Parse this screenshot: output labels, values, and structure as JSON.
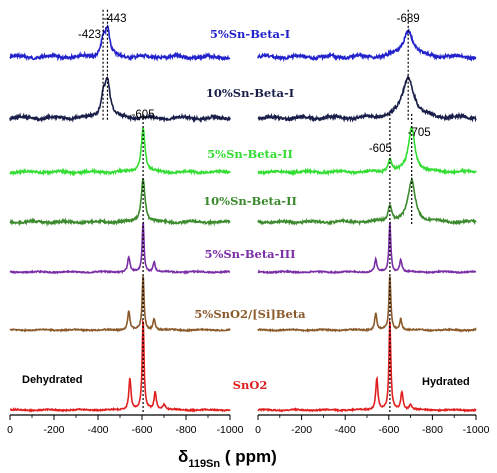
{
  "chart_data": {
    "type": "line",
    "x_label": "δ119Sn (ppm)",
    "x_label_main": "δ",
    "x_label_sub": "119Sn",
    "x_label_unit": " ( ppm)",
    "x_axis": {
      "ticks": [
        0,
        -200,
        -400,
        -600,
        -800,
        -1000
      ],
      "tick_labels": [
        "0",
        "-200",
        "-400",
        "-600",
        "-800",
        "-1000"
      ]
    },
    "panels": [
      {
        "name": "dehydrated",
        "condition_label": "Dehydrated",
        "xlim": [
          0,
          -1000
        ],
        "series": [
          {
            "name": "5%Sn-Beta-I",
            "color": "#2222cc",
            "peaks": [
              {
                "pos": -423,
                "h": 0.35,
                "w": 12
              },
              {
                "pos": -443,
                "h": 0.55,
                "w": 12
              }
            ]
          },
          {
            "name": "10%Sn-Beta-I",
            "color": "#1a1f4a",
            "peaks": [
              {
                "pos": -423,
                "h": 0.4,
                "w": 12
              },
              {
                "pos": -443,
                "h": 0.75,
                "w": 14
              }
            ]
          },
          {
            "name": "5%Sn-Beta-II",
            "color": "#33dd33",
            "peaks": [
              {
                "pos": -605,
                "h": 0.75,
                "w": 10
              }
            ]
          },
          {
            "name": "10%Sn-Beta-II",
            "color": "#3c8a2e",
            "peaks": [
              {
                "pos": -605,
                "h": 0.8,
                "w": 10
              }
            ]
          },
          {
            "name": "5%Sn-Beta-III",
            "color": "#7a2fa6",
            "peaks": [
              {
                "pos": -605,
                "h": 1.0,
                "w": 5
              },
              {
                "pos": -540,
                "h": 0.3,
                "w": 6
              },
              {
                "pos": -655,
                "h": 0.2,
                "w": 6
              }
            ]
          },
          {
            "name": "5%SnO2/[Si]Beta",
            "color": "#8a5a2b",
            "peaks": [
              {
                "pos": -605,
                "h": 1.0,
                "w": 5
              },
              {
                "pos": -540,
                "h": 0.35,
                "w": 6
              },
              {
                "pos": -655,
                "h": 0.2,
                "w": 6
              }
            ]
          },
          {
            "name": "SnO2",
            "color": "#e02020",
            "peaks": [
              {
                "pos": -605,
                "h": 1.0,
                "w": 5
              },
              {
                "pos": -545,
                "h": 0.35,
                "w": 6
              },
              {
                "pos": -660,
                "h": 0.2,
                "w": 6
              },
              {
                "pos": -700,
                "h": 0.06,
                "w": 8
              }
            ]
          }
        ],
        "markers": [
          {
            "label": "-423",
            "x": -423,
            "series_from": 0,
            "series_to": 1
          },
          {
            "label": "-443",
            "x": -443,
            "series_from": 0,
            "series_to": 1
          },
          {
            "label": "-605",
            "x": -605,
            "series_from": 2,
            "series_to": 6
          }
        ]
      },
      {
        "name": "hydrated",
        "condition_label": "Hydrated",
        "xlim": [
          0,
          -1000
        ],
        "series": [
          {
            "name": "5%Sn-Beta-I",
            "color": "#2222cc",
            "peaks": [
              {
                "pos": -689,
                "h": 0.55,
                "w": 28
              }
            ]
          },
          {
            "name": "10%Sn-Beta-I",
            "color": "#1a1f4a",
            "peaks": [
              {
                "pos": -689,
                "h": 0.85,
                "w": 32
              }
            ]
          },
          {
            "name": "5%Sn-Beta-II",
            "color": "#33dd33",
            "peaks": [
              {
                "pos": -705,
                "h": 0.75,
                "w": 18
              },
              {
                "pos": -605,
                "h": 0.2,
                "w": 10
              }
            ]
          },
          {
            "name": "10%Sn-Beta-II",
            "color": "#3c8a2e",
            "peaks": [
              {
                "pos": -705,
                "h": 0.75,
                "w": 20
              },
              {
                "pos": -605,
                "h": 0.3,
                "w": 10
              }
            ]
          },
          {
            "name": "5%Sn-Beta-III",
            "color": "#7a2fa6",
            "peaks": [
              {
                "pos": -605,
                "h": 1.0,
                "w": 5
              },
              {
                "pos": -540,
                "h": 0.25,
                "w": 6
              },
              {
                "pos": -655,
                "h": 0.25,
                "w": 6
              }
            ]
          },
          {
            "name": "5%SnO2/[Si]Beta",
            "color": "#8a5a2b",
            "peaks": [
              {
                "pos": -605,
                "h": 1.0,
                "w": 5
              },
              {
                "pos": -540,
                "h": 0.3,
                "w": 6
              },
              {
                "pos": -655,
                "h": 0.2,
                "w": 6
              }
            ]
          },
          {
            "name": "SnO2",
            "color": "#e02020",
            "peaks": [
              {
                "pos": -605,
                "h": 1.0,
                "w": 5
              },
              {
                "pos": -545,
                "h": 0.35,
                "w": 6
              },
              {
                "pos": -660,
                "h": 0.2,
                "w": 6
              },
              {
                "pos": -700,
                "h": 0.06,
                "w": 8
              }
            ]
          }
        ],
        "markers": [
          {
            "label": "-689",
            "x": -689,
            "series_from": 0,
            "series_to": 1
          },
          {
            "label": "-605",
            "x": -605,
            "series_from": 2,
            "series_to": 6
          },
          {
            "label": "-705",
            "x": -705,
            "series_from": 2,
            "series_to": 3
          }
        ]
      }
    ],
    "series_labels": [
      "5%Sn-Beta-I",
      "10%Sn-Beta-I",
      "5%Sn-Beta-II",
      "10%Sn-Beta-II",
      "5%Sn-Beta-III",
      "5%SnO2/[Si]Beta",
      "SnO2"
    ]
  }
}
